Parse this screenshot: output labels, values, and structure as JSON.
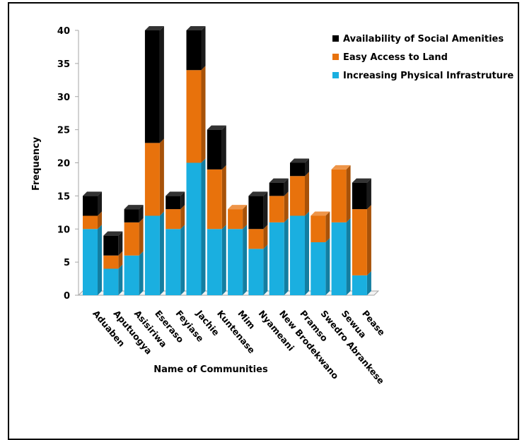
{
  "chart_data": {
    "type": "bar",
    "stacked": true,
    "style": "3d-column",
    "title": "",
    "xlabel": "Name of Communities",
    "ylabel": "Frequency",
    "ylim": [
      0,
      40
    ],
    "yticks": [
      0,
      5,
      10,
      15,
      20,
      25,
      30,
      35,
      40
    ],
    "grid": false,
    "legend_position": "top-right",
    "categories": [
      "Aduaben",
      "Aputuogya",
      "Asisiriwa",
      "Eseraso",
      "Feyiase",
      "Jachie",
      "Kuntenase",
      "Mim",
      "Nyameani",
      "New Brodekwano",
      "Pramso",
      "Swedro Abrankese",
      "Sewua",
      "Pease"
    ],
    "series": [
      {
        "name": "Increasing Physical Infrastruture",
        "color": "#1AAFE0",
        "values": [
          10,
          4,
          6,
          12,
          10,
          20,
          10,
          10,
          7,
          11,
          12,
          8,
          11,
          3
        ]
      },
      {
        "name": "Easy Access to Land",
        "color": "#E8720C",
        "values": [
          2,
          2,
          5,
          11,
          3,
          14,
          9,
          3,
          3,
          4,
          6,
          4,
          8,
          10
        ]
      },
      {
        "name": "Availability of Social Amenities",
        "color": "#000000",
        "values": [
          3,
          3,
          2,
          17,
          2,
          6,
          6,
          0,
          5,
          2,
          2,
          0,
          0,
          4
        ]
      }
    ]
  }
}
